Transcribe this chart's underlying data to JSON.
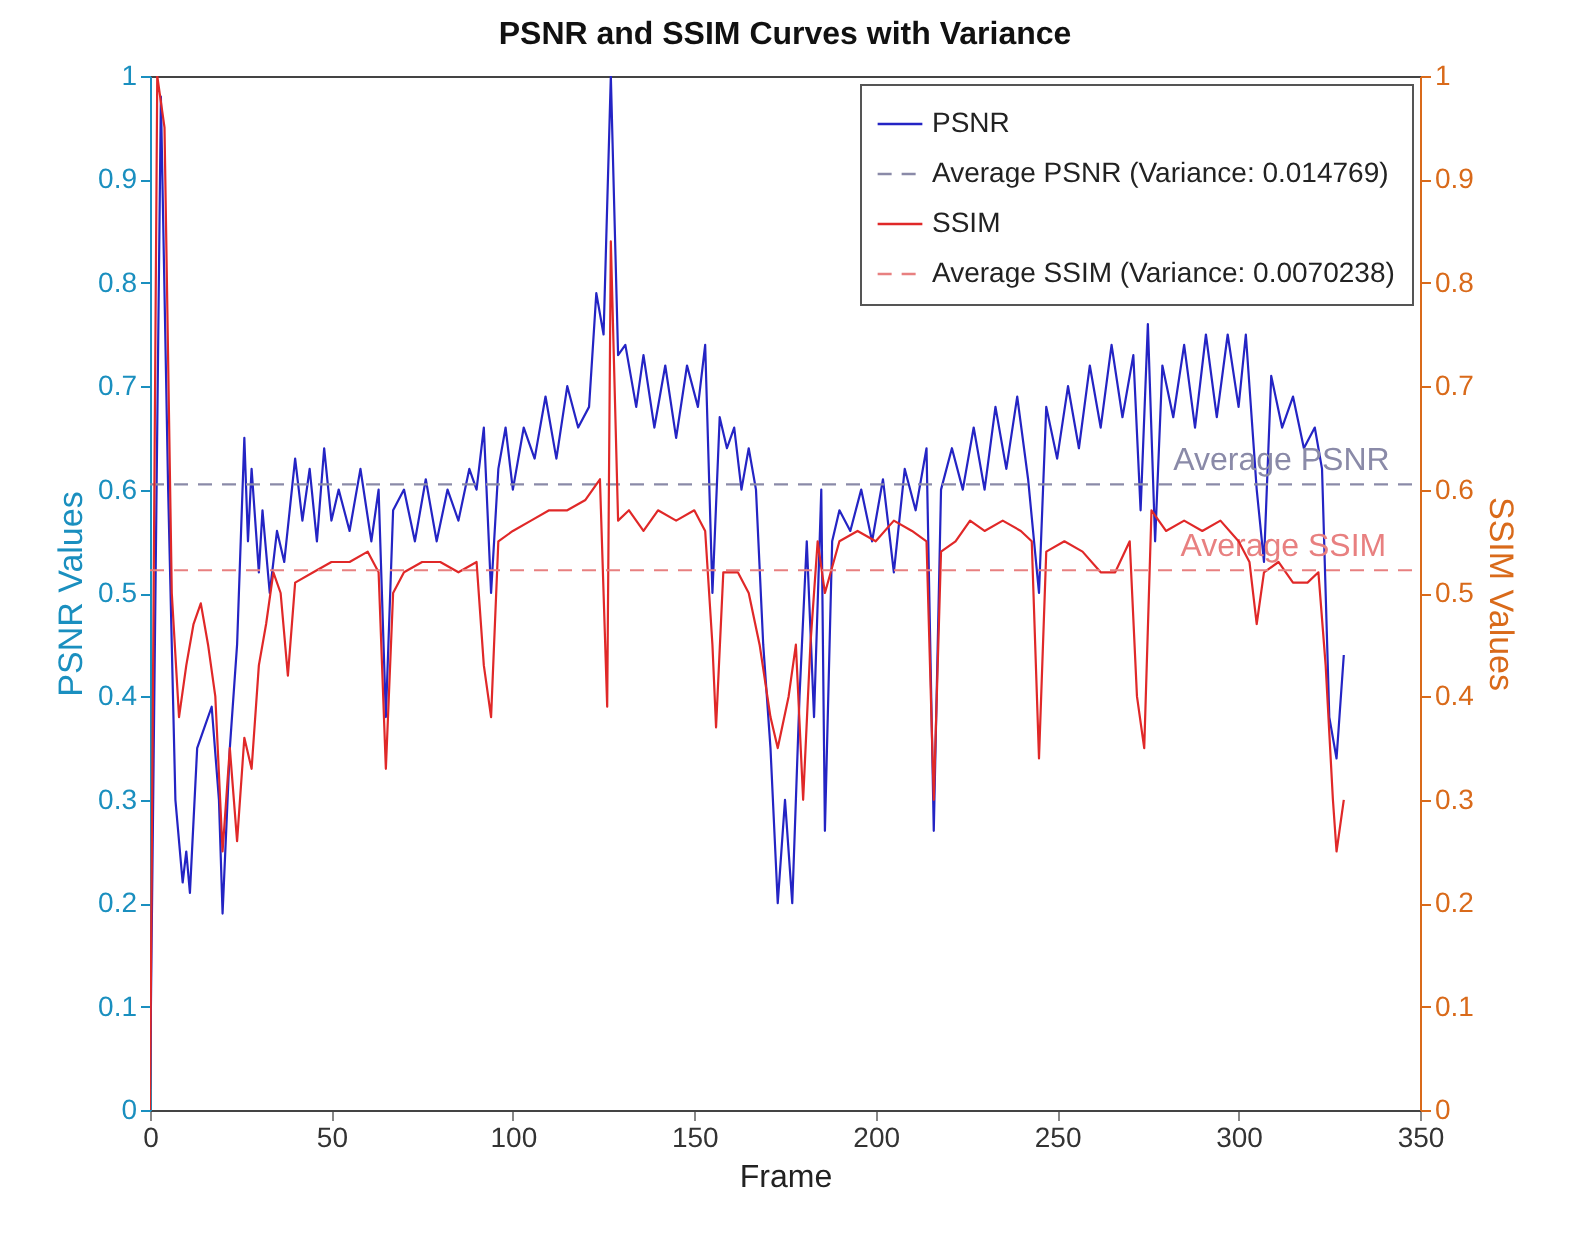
{
  "chart_data": {
    "type": "line",
    "title": "PSNR and SSIM Curves with Variance",
    "xlabel": "Frame",
    "ylabel": "PSNR Values",
    "y2label": "SSIM Values",
    "xlim": [
      0,
      350
    ],
    "xticks": [
      0,
      50,
      100,
      150,
      200,
      250,
      300,
      350
    ],
    "ylim": [
      0,
      1
    ],
    "yticks": [
      0,
      0.1,
      0.2,
      0.3,
      0.4,
      0.5,
      0.6,
      0.7,
      0.8,
      0.9,
      1
    ],
    "y2lim": [
      0,
      1
    ],
    "y2ticks": [
      0,
      0.1,
      0.2,
      0.3,
      0.4,
      0.5,
      0.6,
      0.7,
      0.8,
      0.9,
      1
    ],
    "legend": "top right",
    "line_style": "solid",
    "series": [
      {
        "name": "PSNR",
        "color": "#2424c4",
        "x": [
          0,
          3,
          5,
          7,
          9,
          10,
          11,
          13,
          15,
          17,
          19,
          20,
          22,
          24,
          26,
          27,
          28,
          30,
          31,
          33,
          35,
          37,
          40,
          42,
          44,
          46,
          48,
          50,
          52,
          55,
          58,
          61,
          63,
          65,
          67,
          70,
          73,
          76,
          79,
          82,
          85,
          88,
          90,
          92,
          94,
          96,
          98,
          100,
          103,
          106,
          109,
          112,
          115,
          118,
          121,
          123,
          125,
          127,
          129,
          131,
          134,
          136,
          139,
          142,
          145,
          148,
          151,
          153,
          155,
          157,
          159,
          161,
          163,
          165,
          167,
          169,
          171,
          173,
          175,
          177,
          179,
          181,
          183,
          185,
          186,
          188,
          190,
          193,
          196,
          199,
          202,
          205,
          208,
          211,
          214,
          216,
          218,
          221,
          224,
          227,
          230,
          233,
          236,
          239,
          242,
          245,
          247,
          250,
          253,
          256,
          259,
          262,
          265,
          268,
          271,
          273,
          275,
          277,
          279,
          282,
          285,
          288,
          291,
          294,
          297,
          300,
          302,
          305,
          307,
          309,
          312,
          315,
          318,
          321,
          323,
          325,
          327,
          329
        ],
        "values": [
          0.02,
          0.98,
          0.6,
          0.3,
          0.22,
          0.25,
          0.21,
          0.35,
          0.37,
          0.39,
          0.3,
          0.19,
          0.35,
          0.45,
          0.65,
          0.55,
          0.62,
          0.52,
          0.58,
          0.5,
          0.56,
          0.53,
          0.63,
          0.57,
          0.62,
          0.55,
          0.64,
          0.57,
          0.6,
          0.56,
          0.62,
          0.55,
          0.6,
          0.38,
          0.58,
          0.6,
          0.55,
          0.61,
          0.55,
          0.6,
          0.57,
          0.62,
          0.6,
          0.66,
          0.5,
          0.62,
          0.66,
          0.6,
          0.66,
          0.63,
          0.69,
          0.63,
          0.7,
          0.66,
          0.68,
          0.79,
          0.75,
          1.0,
          0.73,
          0.74,
          0.68,
          0.73,
          0.66,
          0.72,
          0.65,
          0.72,
          0.68,
          0.74,
          0.5,
          0.67,
          0.64,
          0.66,
          0.6,
          0.64,
          0.6,
          0.45,
          0.35,
          0.2,
          0.3,
          0.2,
          0.4,
          0.55,
          0.38,
          0.6,
          0.27,
          0.55,
          0.58,
          0.56,
          0.6,
          0.55,
          0.61,
          0.52,
          0.62,
          0.58,
          0.64,
          0.27,
          0.6,
          0.64,
          0.6,
          0.66,
          0.6,
          0.68,
          0.62,
          0.69,
          0.61,
          0.5,
          0.68,
          0.63,
          0.7,
          0.64,
          0.72,
          0.66,
          0.74,
          0.67,
          0.73,
          0.58,
          0.76,
          0.55,
          0.72,
          0.67,
          0.74,
          0.66,
          0.75,
          0.67,
          0.75,
          0.68,
          0.75,
          0.6,
          0.53,
          0.71,
          0.66,
          0.69,
          0.64,
          0.66,
          0.62,
          0.38,
          0.34,
          0.44
        ]
      },
      {
        "name": "Average PSNR (Variance: 0.014769)",
        "color": "#8a8aa8",
        "line_style": "dashed",
        "x": [
          0,
          350
        ],
        "values": [
          0.605,
          0.605
        ]
      },
      {
        "name": "SSIM",
        "color": "#e02828",
        "axis": "y2",
        "x": [
          0,
          2,
          4,
          6,
          8,
          10,
          12,
          14,
          16,
          18,
          20,
          22,
          24,
          26,
          28,
          30,
          32,
          34,
          36,
          38,
          40,
          45,
          50,
          55,
          60,
          63,
          65,
          67,
          70,
          75,
          80,
          85,
          90,
          92,
          94,
          96,
          100,
          105,
          110,
          115,
          120,
          124,
          126,
          127,
          129,
          132,
          136,
          140,
          145,
          150,
          153,
          155,
          156,
          158,
          162,
          165,
          168,
          171,
          173,
          176,
          178,
          180,
          182,
          184,
          186,
          190,
          195,
          200,
          205,
          210,
          214,
          216,
          218,
          222,
          226,
          230,
          235,
          240,
          243,
          245,
          247,
          252,
          257,
          262,
          266,
          270,
          272,
          274,
          276,
          280,
          285,
          290,
          295,
          300,
          303,
          305,
          307,
          311,
          315,
          319,
          322,
          324,
          326,
          327,
          329
        ],
        "values": [
          0.0,
          1.0,
          0.95,
          0.5,
          0.38,
          0.43,
          0.47,
          0.49,
          0.45,
          0.4,
          0.25,
          0.35,
          0.26,
          0.36,
          0.33,
          0.43,
          0.47,
          0.52,
          0.5,
          0.42,
          0.51,
          0.52,
          0.53,
          0.53,
          0.54,
          0.52,
          0.33,
          0.5,
          0.52,
          0.53,
          0.53,
          0.52,
          0.53,
          0.43,
          0.38,
          0.55,
          0.56,
          0.57,
          0.58,
          0.58,
          0.59,
          0.61,
          0.39,
          0.84,
          0.57,
          0.58,
          0.56,
          0.58,
          0.57,
          0.58,
          0.56,
          0.45,
          0.37,
          0.52,
          0.52,
          0.5,
          0.45,
          0.38,
          0.35,
          0.4,
          0.45,
          0.3,
          0.45,
          0.55,
          0.5,
          0.55,
          0.56,
          0.55,
          0.57,
          0.56,
          0.55,
          0.3,
          0.54,
          0.55,
          0.57,
          0.56,
          0.57,
          0.56,
          0.55,
          0.34,
          0.54,
          0.55,
          0.54,
          0.52,
          0.52,
          0.55,
          0.4,
          0.35,
          0.58,
          0.56,
          0.57,
          0.56,
          0.57,
          0.55,
          0.53,
          0.47,
          0.52,
          0.53,
          0.51,
          0.51,
          0.52,
          0.43,
          0.3,
          0.25,
          0.3
        ]
      },
      {
        "name": "Average SSIM (Variance: 0.0070238)",
        "color": "#e88080",
        "line_style": "dashed",
        "axis": "y2",
        "x": [
          0,
          350
        ],
        "values": [
          0.522,
          0.522
        ]
      }
    ],
    "annotations": [
      {
        "text": "Average PSNR",
        "x": 282,
        "y": 0.605
      },
      {
        "text": "Average SSIM",
        "x": 284,
        "y": 0.522
      }
    ]
  }
}
